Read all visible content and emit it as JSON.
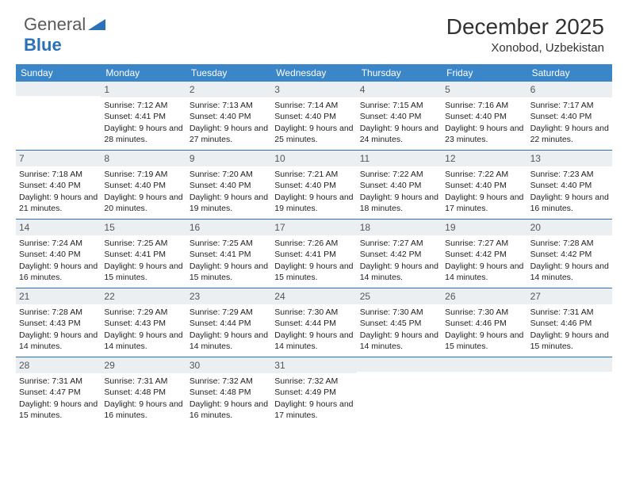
{
  "brand": {
    "word1": "General",
    "word2": "Blue"
  },
  "title": "December 2025",
  "location": "Xonobod, Uzbekistan",
  "colors": {
    "header_bg": "#3a86c8",
    "header_text": "#ffffff",
    "date_bg": "#eceff1",
    "week_divider": "#2a71b8",
    "body_text": "#222222",
    "brand_blue": "#2a71b8",
    "brand_gray": "#5a5a5a"
  },
  "day_names": [
    "Sunday",
    "Monday",
    "Tuesday",
    "Wednesday",
    "Thursday",
    "Friday",
    "Saturday"
  ],
  "weeks": [
    [
      {
        "date": "",
        "sunrise": "",
        "sunset": "",
        "daylight": ""
      },
      {
        "date": "1",
        "sunrise": "Sunrise: 7:12 AM",
        "sunset": "Sunset: 4:41 PM",
        "daylight": "Daylight: 9 hours and 28 minutes."
      },
      {
        "date": "2",
        "sunrise": "Sunrise: 7:13 AM",
        "sunset": "Sunset: 4:40 PM",
        "daylight": "Daylight: 9 hours and 27 minutes."
      },
      {
        "date": "3",
        "sunrise": "Sunrise: 7:14 AM",
        "sunset": "Sunset: 4:40 PM",
        "daylight": "Daylight: 9 hours and 25 minutes."
      },
      {
        "date": "4",
        "sunrise": "Sunrise: 7:15 AM",
        "sunset": "Sunset: 4:40 PM",
        "daylight": "Daylight: 9 hours and 24 minutes."
      },
      {
        "date": "5",
        "sunrise": "Sunrise: 7:16 AM",
        "sunset": "Sunset: 4:40 PM",
        "daylight": "Daylight: 9 hours and 23 minutes."
      },
      {
        "date": "6",
        "sunrise": "Sunrise: 7:17 AM",
        "sunset": "Sunset: 4:40 PM",
        "daylight": "Daylight: 9 hours and 22 minutes."
      }
    ],
    [
      {
        "date": "7",
        "sunrise": "Sunrise: 7:18 AM",
        "sunset": "Sunset: 4:40 PM",
        "daylight": "Daylight: 9 hours and 21 minutes."
      },
      {
        "date": "8",
        "sunrise": "Sunrise: 7:19 AM",
        "sunset": "Sunset: 4:40 PM",
        "daylight": "Daylight: 9 hours and 20 minutes."
      },
      {
        "date": "9",
        "sunrise": "Sunrise: 7:20 AM",
        "sunset": "Sunset: 4:40 PM",
        "daylight": "Daylight: 9 hours and 19 minutes."
      },
      {
        "date": "10",
        "sunrise": "Sunrise: 7:21 AM",
        "sunset": "Sunset: 4:40 PM",
        "daylight": "Daylight: 9 hours and 19 minutes."
      },
      {
        "date": "11",
        "sunrise": "Sunrise: 7:22 AM",
        "sunset": "Sunset: 4:40 PM",
        "daylight": "Daylight: 9 hours and 18 minutes."
      },
      {
        "date": "12",
        "sunrise": "Sunrise: 7:22 AM",
        "sunset": "Sunset: 4:40 PM",
        "daylight": "Daylight: 9 hours and 17 minutes."
      },
      {
        "date": "13",
        "sunrise": "Sunrise: 7:23 AM",
        "sunset": "Sunset: 4:40 PM",
        "daylight": "Daylight: 9 hours and 16 minutes."
      }
    ],
    [
      {
        "date": "14",
        "sunrise": "Sunrise: 7:24 AM",
        "sunset": "Sunset: 4:40 PM",
        "daylight": "Daylight: 9 hours and 16 minutes."
      },
      {
        "date": "15",
        "sunrise": "Sunrise: 7:25 AM",
        "sunset": "Sunset: 4:41 PM",
        "daylight": "Daylight: 9 hours and 15 minutes."
      },
      {
        "date": "16",
        "sunrise": "Sunrise: 7:25 AM",
        "sunset": "Sunset: 4:41 PM",
        "daylight": "Daylight: 9 hours and 15 minutes."
      },
      {
        "date": "17",
        "sunrise": "Sunrise: 7:26 AM",
        "sunset": "Sunset: 4:41 PM",
        "daylight": "Daylight: 9 hours and 15 minutes."
      },
      {
        "date": "18",
        "sunrise": "Sunrise: 7:27 AM",
        "sunset": "Sunset: 4:42 PM",
        "daylight": "Daylight: 9 hours and 14 minutes."
      },
      {
        "date": "19",
        "sunrise": "Sunrise: 7:27 AM",
        "sunset": "Sunset: 4:42 PM",
        "daylight": "Daylight: 9 hours and 14 minutes."
      },
      {
        "date": "20",
        "sunrise": "Sunrise: 7:28 AM",
        "sunset": "Sunset: 4:42 PM",
        "daylight": "Daylight: 9 hours and 14 minutes."
      }
    ],
    [
      {
        "date": "21",
        "sunrise": "Sunrise: 7:28 AM",
        "sunset": "Sunset: 4:43 PM",
        "daylight": "Daylight: 9 hours and 14 minutes."
      },
      {
        "date": "22",
        "sunrise": "Sunrise: 7:29 AM",
        "sunset": "Sunset: 4:43 PM",
        "daylight": "Daylight: 9 hours and 14 minutes."
      },
      {
        "date": "23",
        "sunrise": "Sunrise: 7:29 AM",
        "sunset": "Sunset: 4:44 PM",
        "daylight": "Daylight: 9 hours and 14 minutes."
      },
      {
        "date": "24",
        "sunrise": "Sunrise: 7:30 AM",
        "sunset": "Sunset: 4:44 PM",
        "daylight": "Daylight: 9 hours and 14 minutes."
      },
      {
        "date": "25",
        "sunrise": "Sunrise: 7:30 AM",
        "sunset": "Sunset: 4:45 PM",
        "daylight": "Daylight: 9 hours and 14 minutes."
      },
      {
        "date": "26",
        "sunrise": "Sunrise: 7:30 AM",
        "sunset": "Sunset: 4:46 PM",
        "daylight": "Daylight: 9 hours and 15 minutes."
      },
      {
        "date": "27",
        "sunrise": "Sunrise: 7:31 AM",
        "sunset": "Sunset: 4:46 PM",
        "daylight": "Daylight: 9 hours and 15 minutes."
      }
    ],
    [
      {
        "date": "28",
        "sunrise": "Sunrise: 7:31 AM",
        "sunset": "Sunset: 4:47 PM",
        "daylight": "Daylight: 9 hours and 15 minutes."
      },
      {
        "date": "29",
        "sunrise": "Sunrise: 7:31 AM",
        "sunset": "Sunset: 4:48 PM",
        "daylight": "Daylight: 9 hours and 16 minutes."
      },
      {
        "date": "30",
        "sunrise": "Sunrise: 7:32 AM",
        "sunset": "Sunset: 4:48 PM",
        "daylight": "Daylight: 9 hours and 16 minutes."
      },
      {
        "date": "31",
        "sunrise": "Sunrise: 7:32 AM",
        "sunset": "Sunset: 4:49 PM",
        "daylight": "Daylight: 9 hours and 17 minutes."
      },
      {
        "date": "",
        "sunrise": "",
        "sunset": "",
        "daylight": ""
      },
      {
        "date": "",
        "sunrise": "",
        "sunset": "",
        "daylight": ""
      },
      {
        "date": "",
        "sunrise": "",
        "sunset": "",
        "daylight": ""
      }
    ]
  ]
}
